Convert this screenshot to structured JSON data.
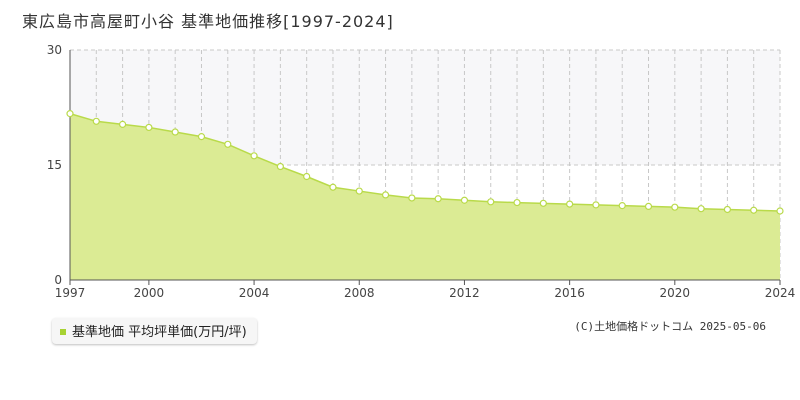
{
  "header": {
    "title": "東広島市高屋町小谷 基準地価推移[1997-2024]"
  },
  "legend": {
    "label": "基準地価 平均坪単価(万円/坪)"
  },
  "credit": {
    "text": "(C)土地価格ドットコム 2025-05-06"
  },
  "colors": {
    "area_fill": "#dbeb94",
    "line": "#b9da4a",
    "marker_fill": "#ffffff",
    "marker_stroke": "#b9da4a",
    "grid": "#c8c8c8",
    "band": "#f7f7f9"
  },
  "chart_data": {
    "type": "area",
    "title": "東広島市高屋町小谷 基準地価推移[1997-2024]",
    "xlabel": "",
    "ylabel": "",
    "xlim": [
      1997,
      2024
    ],
    "ylim": [
      0,
      30
    ],
    "yticks": [
      0,
      15,
      30
    ],
    "xticks": [
      1997,
      2000,
      2004,
      2008,
      2012,
      2016,
      2020,
      2024
    ],
    "grid": true,
    "legend_position": "bottom-left",
    "x": [
      1997,
      1998,
      1999,
      2000,
      2001,
      2002,
      2003,
      2004,
      2005,
      2006,
      2007,
      2008,
      2009,
      2010,
      2011,
      2012,
      2013,
      2014,
      2015,
      2016,
      2017,
      2018,
      2019,
      2020,
      2021,
      2022,
      2023,
      2024
    ],
    "series": [
      {
        "name": "基準地価 平均坪単価(万円/坪)",
        "values": [
          21.7,
          20.7,
          20.3,
          19.9,
          19.3,
          18.7,
          17.7,
          16.2,
          14.8,
          13.5,
          12.1,
          11.6,
          11.1,
          10.7,
          10.6,
          10.4,
          10.2,
          10.1,
          10.0,
          9.9,
          9.8,
          9.7,
          9.6,
          9.5,
          9.3,
          9.2,
          9.1,
          9.0
        ]
      }
    ]
  }
}
